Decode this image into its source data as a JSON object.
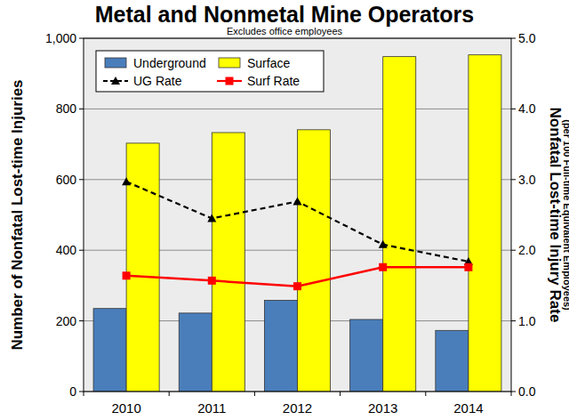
{
  "chart_data": {
    "type": "bar",
    "title": "Metal and Nonmetal Mine Operators",
    "subtitle": "Excludes office employees",
    "y_label": "Number of Nonfatal Lost-time Injuries",
    "y2_label": "Nonfatal Lost-time Injury Rate",
    "y2_label_sub": "(per 100 Full-time Equivalent Employees)",
    "categories": [
      "2010",
      "2011",
      "2012",
      "2013",
      "2014"
    ],
    "series": [
      {
        "name": "Underground",
        "type": "bar",
        "color": "#4a7ebb",
        "values": [
          235,
          222,
          258,
          204,
          173
        ]
      },
      {
        "name": "Surface",
        "type": "bar",
        "color": "#ffff00",
        "values": [
          703,
          733,
          741,
          948,
          953
        ]
      },
      {
        "name": "UG Rate",
        "type": "line",
        "axis": "y2",
        "color": "#000000",
        "marker": "triangle",
        "line_style": "dashed",
        "values": [
          2.97,
          2.45,
          2.69,
          2.08,
          1.84
        ]
      },
      {
        "name": "Surf Rate",
        "type": "line",
        "axis": "y2",
        "color": "#ff0000",
        "marker": "square",
        "line_style": "solid",
        "values": [
          1.64,
          1.57,
          1.49,
          1.76,
          1.76
        ]
      }
    ],
    "ylim": [
      0,
      1000
    ],
    "yticks": [
      0,
      200,
      400,
      600,
      800,
      {
        "value": 1000,
        "label": "1,000"
      }
    ],
    "y2lim": [
      0,
      5
    ],
    "y2ticks": [
      {
        "value": 0,
        "label": "0.0"
      },
      {
        "value": 1,
        "label": "1.0"
      },
      {
        "value": 2,
        "label": "2.0"
      },
      {
        "value": 3,
        "label": "3.0"
      },
      {
        "value": 4,
        "label": "4.0"
      },
      {
        "value": 5,
        "label": "5.0"
      }
    ],
    "grid": true,
    "legend": "upper left"
  }
}
